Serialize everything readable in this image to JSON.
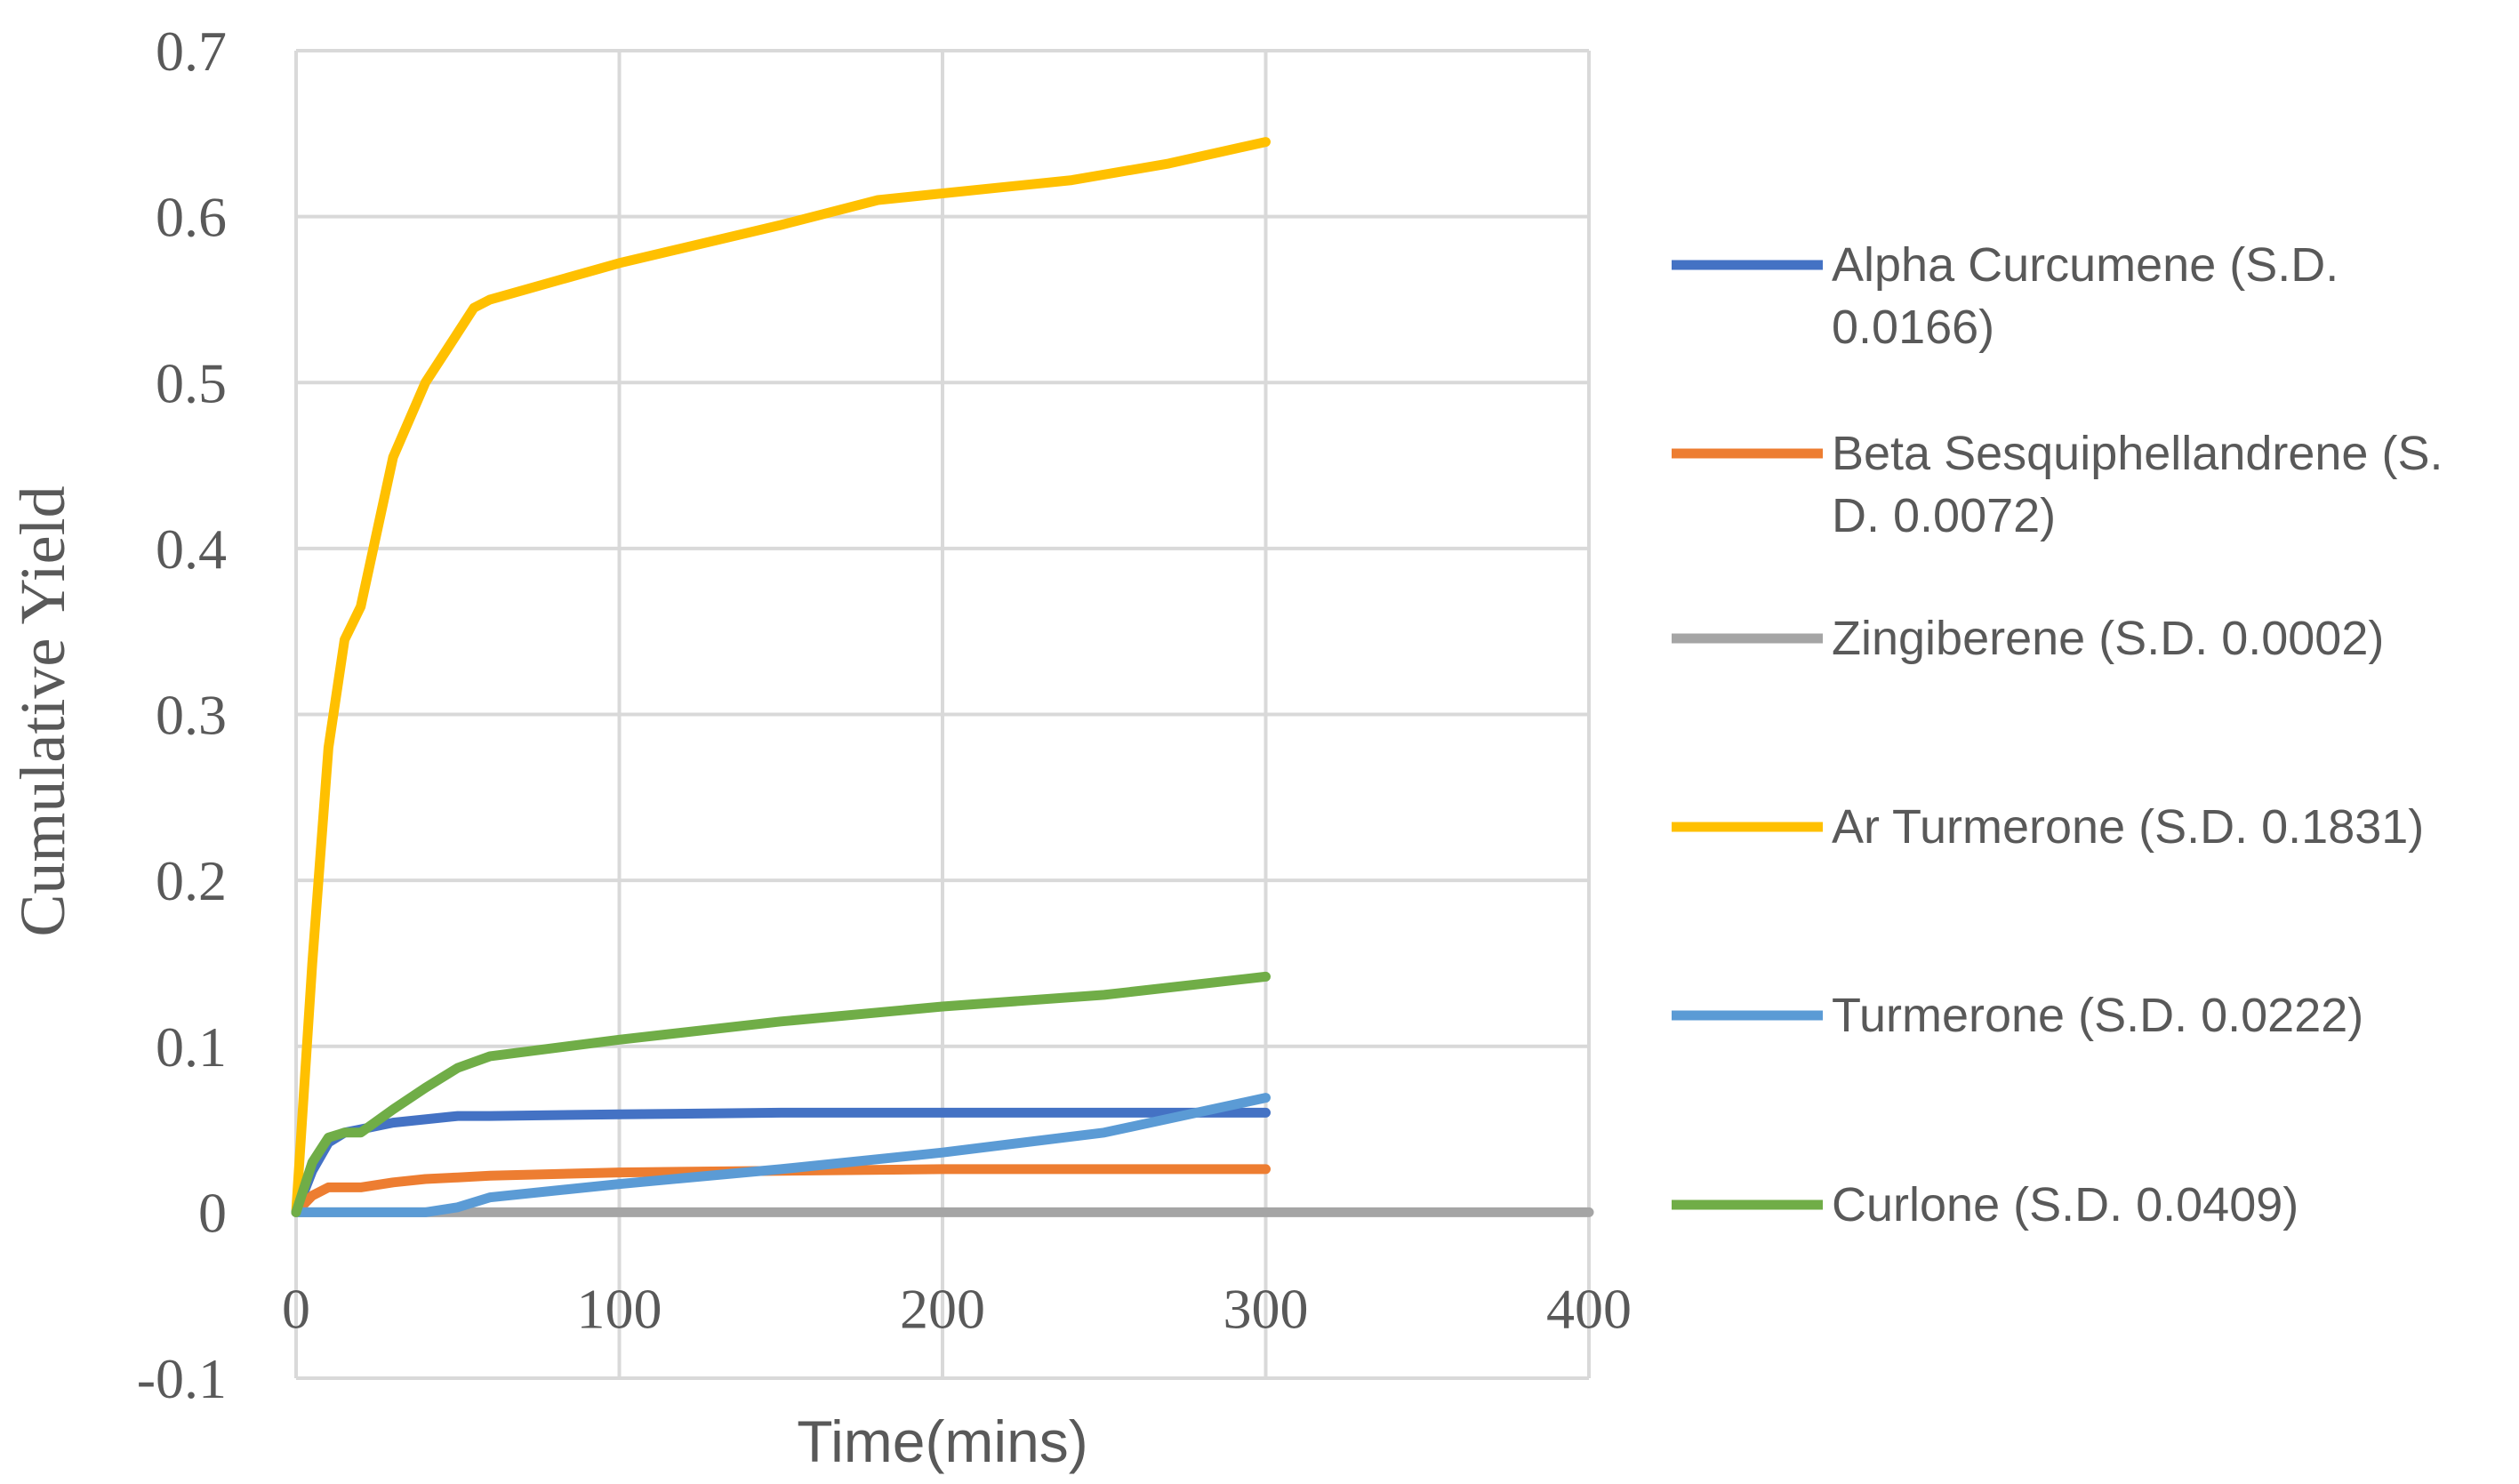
{
  "chart_data": {
    "type": "line",
    "xlabel": "Time(mins)",
    "ylabel": "Cumulative Yield",
    "xlim": [
      0,
      400
    ],
    "ylim": [
      -0.1,
      0.7
    ],
    "xticks": [
      0,
      100,
      200,
      300,
      400
    ],
    "yticks": [
      -0.1,
      0,
      0.1,
      0.2,
      0.3,
      0.4,
      0.5,
      0.6,
      0.7
    ],
    "grid": true,
    "legend_position": "right",
    "series": [
      {
        "name": "Alpha Curcumene (S.D. 0.0166)",
        "legend_lines": [
          "Alpha Curcumene (S.D.",
          "0.0166)"
        ],
        "color": "#4472C4",
        "x": [
          0,
          5,
          10,
          15,
          20,
          30,
          40,
          50,
          60,
          100,
          150,
          200,
          250,
          300
        ],
        "y": [
          0,
          0.025,
          0.042,
          0.048,
          0.05,
          0.054,
          0.056,
          0.058,
          0.058,
          0.059,
          0.06,
          0.06,
          0.06,
          0.06
        ]
      },
      {
        "name": "Beta Sesquiphellandrene (S.D. 0.0072)",
        "legend_lines": [
          "Beta Sesquiphellandrene (S.",
          "D. 0.0072)"
        ],
        "color": "#ED7D31",
        "x": [
          0,
          5,
          10,
          20,
          30,
          40,
          50,
          60,
          100,
          150,
          200,
          250,
          300
        ],
        "y": [
          0,
          0.01,
          0.015,
          0.015,
          0.018,
          0.02,
          0.021,
          0.022,
          0.024,
          0.025,
          0.026,
          0.026,
          0.026
        ]
      },
      {
        "name": "Zingiberene (S.D. 0.0002)",
        "legend_lines": [
          "Zingiberene (S.D. 0.0002)"
        ],
        "color": "#A5A5A5",
        "x": [
          0,
          100,
          200,
          300,
          400
        ],
        "y": [
          0,
          0,
          0,
          0,
          0
        ]
      },
      {
        "name": "Ar Turmerone (S.D. 0.1831)",
        "legend_lines": [
          "Ar Turmerone (S.D. 0.1831)"
        ],
        "color": "#FFC000",
        "x": [
          0,
          5,
          10,
          15,
          20,
          25,
          30,
          40,
          50,
          55,
          60,
          100,
          150,
          180,
          200,
          240,
          270,
          300
        ],
        "y": [
          0,
          0.15,
          0.28,
          0.345,
          0.365,
          0.41,
          0.455,
          0.5,
          0.53,
          0.545,
          0.55,
          0.572,
          0.595,
          0.61,
          0.614,
          0.622,
          0.632,
          0.645
        ]
      },
      {
        "name": "Turmerone (S.D. 0.0222)",
        "legend_lines": [
          "Turmerone (S.D. 0.0222)"
        ],
        "color": "#5B9BD5",
        "x": [
          0,
          20,
          40,
          50,
          60,
          100,
          150,
          200,
          250,
          300
        ],
        "y": [
          0,
          0,
          0,
          0.003,
          0.009,
          0.017,
          0.026,
          0.036,
          0.048,
          0.069
        ]
      },
      {
        "name": "Curlone (S.D. 0.0409)",
        "legend_lines": [
          "Curlone (S.D. 0.0409)"
        ],
        "color": "#70AD47",
        "x": [
          0,
          5,
          10,
          15,
          20,
          30,
          40,
          50,
          60,
          100,
          150,
          200,
          250,
          300
        ],
        "y": [
          0,
          0.03,
          0.045,
          0.048,
          0.048,
          0.062,
          0.075,
          0.087,
          0.094,
          0.104,
          0.115,
          0.124,
          0.131,
          0.142
        ]
      }
    ]
  }
}
